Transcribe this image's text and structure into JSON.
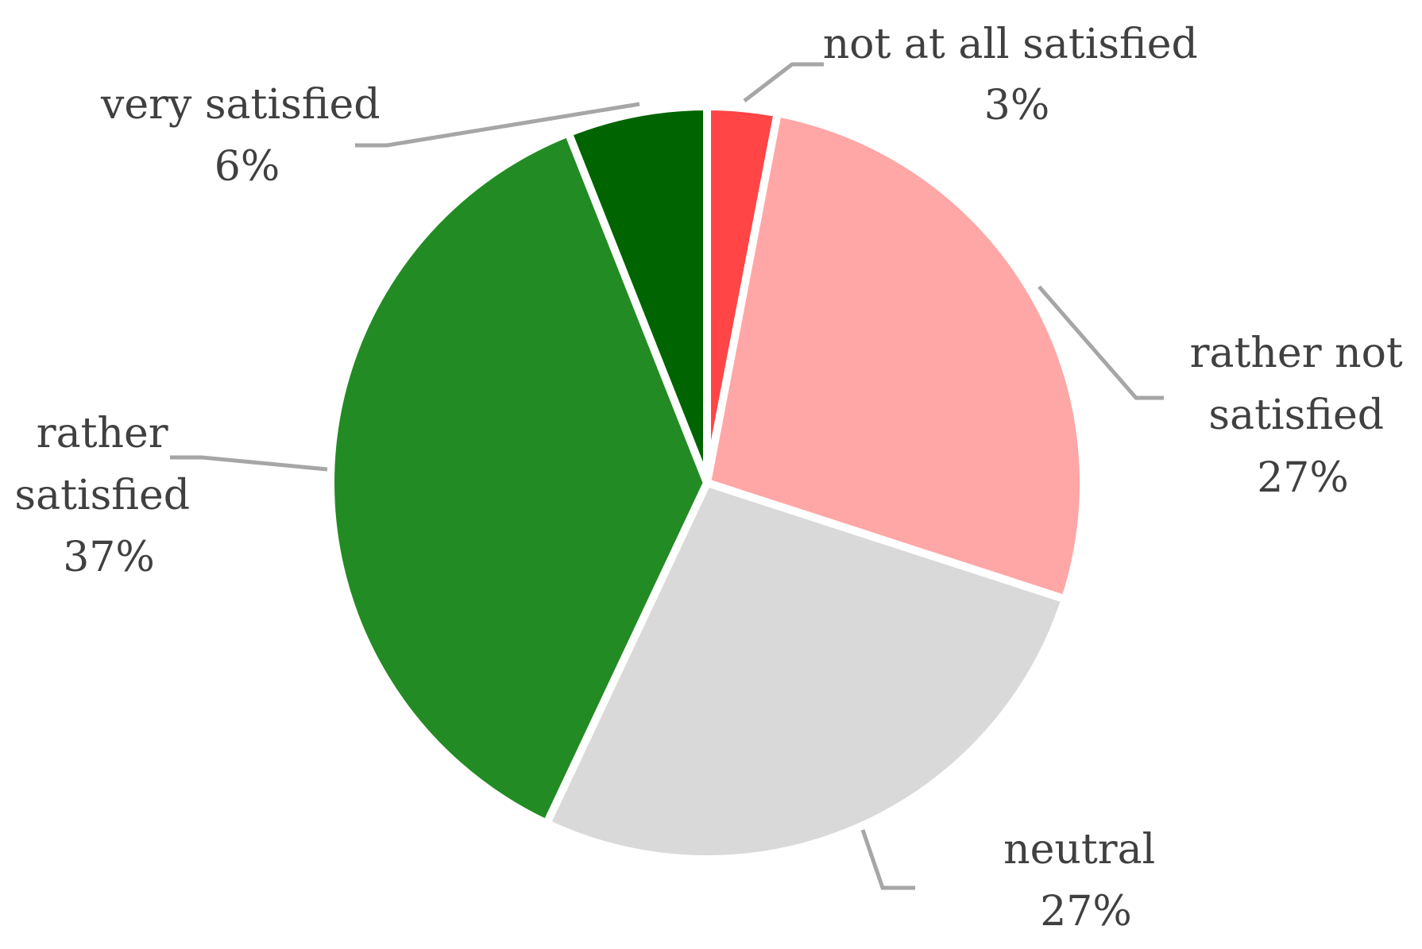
{
  "chart_data": {
    "type": "pie",
    "title": "",
    "start_angle_deg": 0,
    "direction": "clockwise",
    "slices": [
      {
        "label": "not at all satisfied",
        "value": 3,
        "display": "3%",
        "color": "#ff4545"
      },
      {
        "label": "rather not satisfied",
        "value": 27,
        "display": "27%",
        "color": "#ffa7a7"
      },
      {
        "label": "neutral",
        "value": 27,
        "display": "27%",
        "color": "#d9d9d9"
      },
      {
        "label": "rather satisfied",
        "value": 37,
        "display": "37%",
        "color": "#238b23"
      },
      {
        "label": "very satisfied",
        "value": 6,
        "display": "6%",
        "color": "#006400"
      }
    ]
  },
  "labels": {
    "not_at_all": [
      "not at all satisfied",
      "3%"
    ],
    "rather_not": [
      "rather not",
      "satisfied",
      "27%"
    ],
    "neutral": [
      "neutral",
      "27%"
    ],
    "rather": [
      "rather",
      "satisfied",
      "37%"
    ],
    "very": [
      "very satisfied",
      "6%"
    ]
  }
}
